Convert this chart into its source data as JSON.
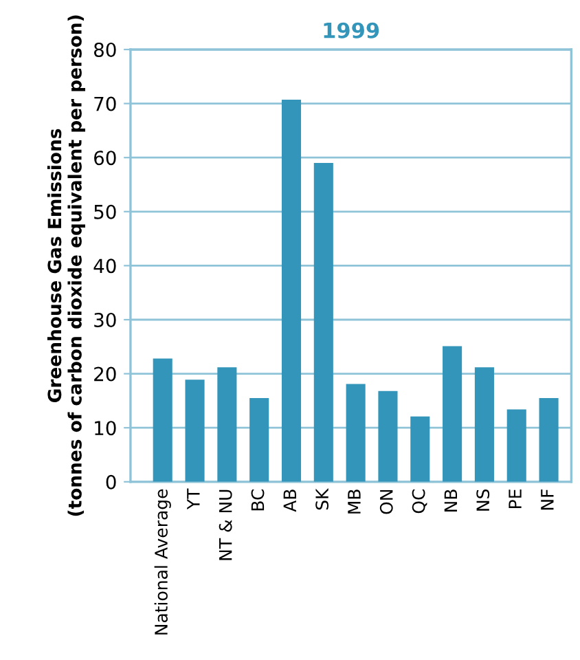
{
  "chart_data": {
    "type": "bar",
    "title": "1999",
    "ylabel": "Greenhouse Gas Emissions\n(tonnes of carbon dioxide equivalent per person)",
    "categories": [
      "National Average",
      "YT",
      "NT & NU",
      "BC",
      "AB",
      "SK",
      "MB",
      "ON",
      "QC",
      "NB",
      "NS",
      "PE",
      "NF"
    ],
    "values": [
      22.8,
      18.9,
      21.2,
      15.5,
      70.7,
      59.0,
      18.1,
      16.8,
      12.1,
      25.1,
      21.2,
      13.4,
      15.5
    ],
    "color": "#3395b9",
    "ylim": [
      0,
      80
    ],
    "yticks": [
      0,
      10,
      20,
      30,
      40,
      50,
      60,
      70,
      80
    ],
    "grid": "y"
  }
}
